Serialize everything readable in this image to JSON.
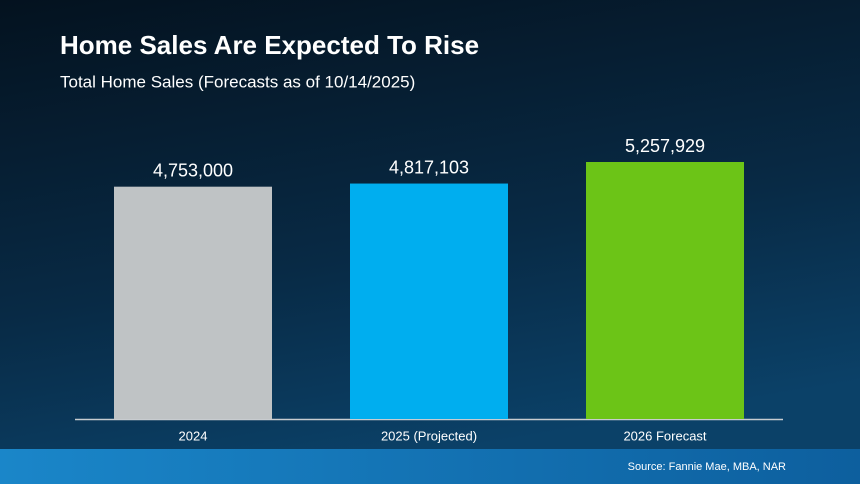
{
  "chart_data": {
    "type": "bar",
    "title": "Home Sales Are Expected To Rise",
    "subtitle": "Total Home Sales (Forecasts as of 10/14/2025)",
    "categories": [
      "2024",
      "2025 (Projected)",
      "2026 Forecast"
    ],
    "values": [
      4753000,
      4817103,
      5257929
    ],
    "value_labels": [
      "4,753,000",
      "4,817,103",
      "5,257,929"
    ],
    "colors": [
      "#bfc3c5",
      "#00aeef",
      "#6cc417"
    ],
    "source": "Source: Fannie Mae, MBA, NAR"
  }
}
